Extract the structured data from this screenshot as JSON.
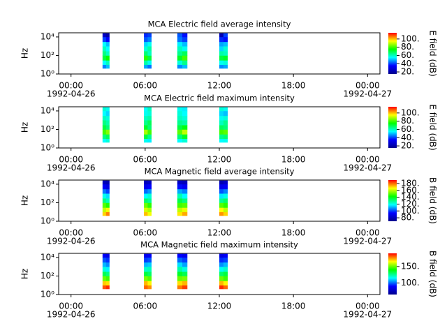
{
  "chart_data": [
    {
      "type": "spectrogram",
      "title": "MCA  Electric field average intensity",
      "ylabel": "Hz",
      "yscale": "log",
      "ylim": [
        1,
        28000
      ],
      "yticks": [
        {
          "value": 1,
          "label": "10⁰"
        },
        {
          "value": 100,
          "label": "10²"
        },
        {
          "value": 10000,
          "label": "10⁴"
        }
      ],
      "xlim": [
        "1992-04-25T23:00",
        "1992-04-27T01:00"
      ],
      "xticks": [
        {
          "value": "1992-04-26T00:00",
          "label": "00:00"
        },
        {
          "value": "1992-04-26T06:00",
          "label": "06:00"
        },
        {
          "value": "1992-04-26T12:00",
          "label": "12:00"
        },
        {
          "value": "1992-04-26T18:00",
          "label": "18:00"
        },
        {
          "value": "1992-04-27T00:00",
          "label": "00:00"
        }
      ],
      "xtick_dates": [
        {
          "value": "1992-04-26T00:00",
          "label": "1992-04-26"
        },
        {
          "value": "1992-04-27T00:00",
          "label": "1992-04-27"
        }
      ],
      "time_bins": [
        [
          "1992-04-26T02:33",
          "1992-04-26T02:50"
        ],
        [
          "1992-04-26T02:50",
          "1992-04-26T03:06"
        ],
        [
          "1992-04-26T05:54",
          "1992-04-26T06:12"
        ],
        [
          "1992-04-26T06:12",
          "1992-04-26T06:30"
        ],
        [
          "1992-04-26T08:36",
          "1992-04-26T09:00"
        ],
        [
          "1992-04-26T09:00",
          "1992-04-26T09:24"
        ],
        [
          "1992-04-26T12:00",
          "1992-04-26T12:20"
        ],
        [
          "1992-04-26T12:20",
          "1992-04-26T12:40"
        ]
      ],
      "freq_bins": [
        4,
        10,
        30,
        100,
        300,
        1000,
        3000,
        10000,
        25000
      ],
      "z": [
        [
          45,
          55,
          70,
          65,
          60,
          55,
          40,
          25
        ],
        [
          50,
          60,
          75,
          60,
          55,
          50,
          35,
          20
        ],
        [
          48,
          62,
          78,
          66,
          58,
          52,
          42,
          38
        ],
        [
          44,
          56,
          70,
          60,
          62,
          56,
          45,
          40
        ],
        [
          46,
          58,
          72,
          64,
          60,
          54,
          44,
          42
        ],
        [
          50,
          64,
          80,
          68,
          56,
          50,
          40,
          36
        ],
        [
          46,
          56,
          70,
          62,
          52,
          48,
          38,
          22
        ],
        [
          48,
          58,
          72,
          60,
          58,
          50,
          36,
          40
        ]
      ],
      "colormap": [
        "#00008c",
        "#0000ff",
        "#00ffff",
        "#00ff00",
        "#ffff00",
        "#ff0000"
      ],
      "zlabel": "E field (dB)",
      "zlim": [
        15,
        115
      ],
      "zticks": [
        {
          "value": 20,
          "label": "20."
        },
        {
          "value": 40,
          "label": "40."
        },
        {
          "value": 60,
          "label": "60."
        },
        {
          "value": 80,
          "label": "80."
        },
        {
          "value": 100,
          "label": "100."
        }
      ]
    },
    {
      "type": "spectrogram",
      "title": "MCA  Electric field maximum intensity",
      "ylabel": "Hz",
      "yscale": "log",
      "ylim": [
        1,
        28000
      ],
      "yticks": [
        {
          "value": 1,
          "label": "10⁰"
        },
        {
          "value": 100,
          "label": "10²"
        },
        {
          "value": 10000,
          "label": "10⁴"
        }
      ],
      "xlim": [
        "1992-04-25T23:00",
        "1992-04-27T01:00"
      ],
      "xticks": [
        {
          "value": "1992-04-26T00:00",
          "label": "00:00"
        },
        {
          "value": "1992-04-26T06:00",
          "label": "06:00"
        },
        {
          "value": "1992-04-26T12:00",
          "label": "12:00"
        },
        {
          "value": "1992-04-26T18:00",
          "label": "18:00"
        },
        {
          "value": "1992-04-27T00:00",
          "label": "00:00"
        }
      ],
      "xtick_dates": [
        {
          "value": "1992-04-26T00:00",
          "label": "1992-04-26"
        },
        {
          "value": "1992-04-27T00:00",
          "label": "1992-04-27"
        }
      ],
      "time_bins": [
        [
          "1992-04-26T02:33",
          "1992-04-26T02:50"
        ],
        [
          "1992-04-26T02:50",
          "1992-04-26T03:06"
        ],
        [
          "1992-04-26T05:54",
          "1992-04-26T06:12"
        ],
        [
          "1992-04-26T06:12",
          "1992-04-26T06:30"
        ],
        [
          "1992-04-26T08:36",
          "1992-04-26T09:00"
        ],
        [
          "1992-04-26T09:00",
          "1992-04-26T09:24"
        ],
        [
          "1992-04-26T12:00",
          "1992-04-26T12:20"
        ],
        [
          "1992-04-26T12:20",
          "1992-04-26T12:40"
        ]
      ],
      "freq_bins": [
        4,
        10,
        30,
        100,
        300,
        1000,
        3000,
        10000,
        25000
      ],
      "z": [
        [
          55,
          65,
          80,
          70,
          65,
          60,
          55,
          58
        ],
        [
          58,
          68,
          85,
          66,
          62,
          58,
          52,
          56
        ],
        [
          56,
          70,
          88,
          72,
          64,
          60,
          56,
          55
        ],
        [
          54,
          64,
          80,
          66,
          68,
          62,
          58,
          60
        ],
        [
          55,
          66,
          82,
          70,
          64,
          60,
          58,
          56
        ],
        [
          58,
          72,
          90,
          74,
          62,
          58,
          55,
          54
        ],
        [
          55,
          64,
          80,
          68,
          60,
          56,
          52,
          58
        ],
        [
          56,
          66,
          82,
          66,
          64,
          58,
          50,
          56
        ]
      ],
      "colormap": [
        "#00008c",
        "#0000ff",
        "#00ffff",
        "#00ff00",
        "#ffff00",
        "#ff0000"
      ],
      "zlabel": "E field (dB)",
      "zlim": [
        15,
        115
      ],
      "zticks": [
        {
          "value": 20,
          "label": "20."
        },
        {
          "value": 40,
          "label": "40."
        },
        {
          "value": 60,
          "label": "60."
        },
        {
          "value": 80,
          "label": "80."
        },
        {
          "value": 100,
          "label": "100."
        }
      ]
    },
    {
      "type": "spectrogram",
      "title": "MCA  Magnetic field average intensity",
      "ylabel": "Hz",
      "yscale": "log",
      "ylim": [
        1,
        28000
      ],
      "yticks": [
        {
          "value": 1,
          "label": "10⁰"
        },
        {
          "value": 100,
          "label": "10²"
        },
        {
          "value": 10000,
          "label": "10⁴"
        }
      ],
      "xlim": [
        "1992-04-25T23:00",
        "1992-04-27T01:00"
      ],
      "xticks": [
        {
          "value": "1992-04-26T00:00",
          "label": "00:00"
        },
        {
          "value": "1992-04-26T06:00",
          "label": "06:00"
        },
        {
          "value": "1992-04-26T12:00",
          "label": "12:00"
        },
        {
          "value": "1992-04-26T18:00",
          "label": "18:00"
        },
        {
          "value": "1992-04-27T00:00",
          "label": "00:00"
        }
      ],
      "xtick_dates": [
        {
          "value": "1992-04-26T00:00",
          "label": "1992-04-26"
        },
        {
          "value": "1992-04-27T00:00",
          "label": "1992-04-27"
        }
      ],
      "time_bins": [
        [
          "1992-04-26T02:33",
          "1992-04-26T02:50"
        ],
        [
          "1992-04-26T02:50",
          "1992-04-26T03:06"
        ],
        [
          "1992-04-26T05:54",
          "1992-04-26T06:12"
        ],
        [
          "1992-04-26T06:12",
          "1992-04-26T06:30"
        ],
        [
          "1992-04-26T08:36",
          "1992-04-26T09:00"
        ],
        [
          "1992-04-26T09:00",
          "1992-04-26T09:24"
        ],
        [
          "1992-04-26T12:00",
          "1992-04-26T12:20"
        ],
        [
          "1992-04-26T12:20",
          "1992-04-26T12:40"
        ]
      ],
      "freq_bins": [
        4,
        10,
        30,
        100,
        300,
        1000,
        3000,
        10000,
        25000
      ],
      "z": [
        [
          170,
          160,
          150,
          130,
          120,
          105,
          92,
          80
        ],
        [
          178,
          165,
          145,
          125,
          115,
          100,
          88,
          78
        ],
        [
          172,
          162,
          152,
          132,
          118,
          104,
          90,
          80
        ],
        [
          165,
          158,
          146,
          128,
          122,
          108,
          94,
          82
        ],
        [
          168,
          160,
          148,
          135,
          125,
          110,
          95,
          82
        ],
        [
          174,
          164,
          150,
          130,
          118,
          106,
          92,
          80
        ],
        [
          176,
          166,
          150,
          128,
          116,
          102,
          90,
          78
        ],
        [
          170,
          160,
          146,
          132,
          120,
          106,
          92,
          82
        ]
      ],
      "colormap": [
        "#00008c",
        "#0000ff",
        "#00ffff",
        "#00ff00",
        "#ffff00",
        "#ff0000"
      ],
      "zlabel": "B field (dB)",
      "zlim": [
        70,
        190
      ],
      "zticks": [
        {
          "value": 80,
          "label": "80."
        },
        {
          "value": 100,
          "label": "100."
        },
        {
          "value": 120,
          "label": "120."
        },
        {
          "value": 140,
          "label": "140."
        },
        {
          "value": 160,
          "label": "160."
        },
        {
          "value": 180,
          "label": "180."
        }
      ]
    },
    {
      "type": "spectrogram",
      "title": "MCA  Magnetic field maximum intensity",
      "ylabel": "Hz",
      "yscale": "log",
      "ylim": [
        1,
        28000
      ],
      "yticks": [
        {
          "value": 1,
          "label": "10⁰"
        },
        {
          "value": 100,
          "label": "10²"
        },
        {
          "value": 10000,
          "label": "10⁴"
        }
      ],
      "xlim": [
        "1992-04-25T23:00",
        "1992-04-27T01:00"
      ],
      "xticks": [
        {
          "value": "1992-04-26T00:00",
          "label": "00:00"
        },
        {
          "value": "1992-04-26T06:00",
          "label": "06:00"
        },
        {
          "value": "1992-04-26T12:00",
          "label": "12:00"
        },
        {
          "value": "1992-04-26T18:00",
          "label": "18:00"
        },
        {
          "value": "1992-04-27T00:00",
          "label": "00:00"
        }
      ],
      "xtick_dates": [
        {
          "value": "1992-04-26T00:00",
          "label": "1992-04-26"
        },
        {
          "value": "1992-04-27T00:00",
          "label": "1992-04-27"
        }
      ],
      "time_bins": [
        [
          "1992-04-26T02:33",
          "1992-04-26T02:50"
        ],
        [
          "1992-04-26T02:50",
          "1992-04-26T03:06"
        ],
        [
          "1992-04-26T05:54",
          "1992-04-26T06:12"
        ],
        [
          "1992-04-26T06:12",
          "1992-04-26T06:30"
        ],
        [
          "1992-04-26T08:36",
          "1992-04-26T09:00"
        ],
        [
          "1992-04-26T09:00",
          "1992-04-26T09:24"
        ],
        [
          "1992-04-26T12:00",
          "1992-04-26T12:20"
        ],
        [
          "1992-04-26T12:20",
          "1992-04-26T12:40"
        ]
      ],
      "freq_bins": [
        4,
        10,
        30,
        100,
        300,
        1000,
        3000,
        10000,
        25000
      ],
      "z": [
        [
          182,
          170,
          150,
          132,
          118,
          108,
          98,
          88
        ],
        [
          186,
          168,
          146,
          128,
          114,
          104,
          95,
          85
        ],
        [
          180,
          172,
          152,
          134,
          120,
          108,
          96,
          86
        ],
        [
          176,
          166,
          148,
          130,
          122,
          110,
          98,
          88
        ],
        [
          178,
          168,
          150,
          136,
          124,
          112,
          100,
          90
        ],
        [
          184,
          172,
          152,
          132,
          118,
          106,
          96,
          86
        ],
        [
          186,
          172,
          150,
          130,
          116,
          104,
          94,
          84
        ],
        [
          180,
          166,
          146,
          134,
          120,
          108,
          96,
          88
        ]
      ],
      "colormap": [
        "#00008c",
        "#0000ff",
        "#00ffff",
        "#00ff00",
        "#ffff00",
        "#ff0000"
      ],
      "zlabel": "B field (dB)",
      "zlim": [
        65,
        190
      ],
      "zticks": [
        {
          "value": 100,
          "label": "100."
        },
        {
          "value": 150,
          "label": "150."
        }
      ]
    }
  ]
}
